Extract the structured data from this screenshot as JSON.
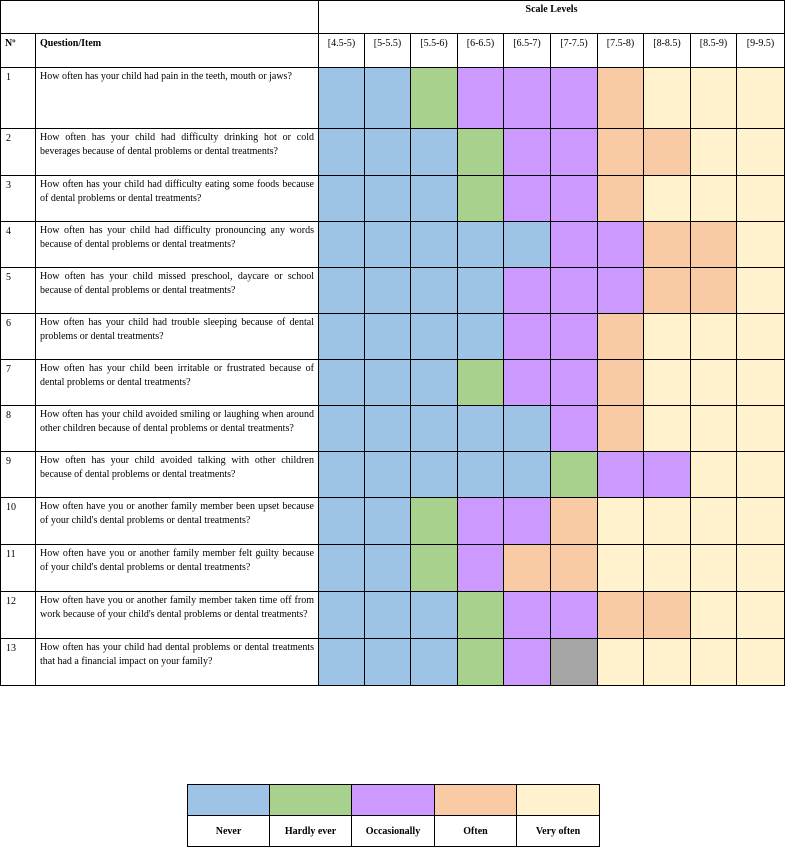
{
  "header": {
    "scale_title": "Scale Levels",
    "no_label": "Nº",
    "question_label": "Question/Item",
    "levels": [
      "[4.5-5)",
      "[5-5.5)",
      "[5.5-6)",
      "[6-6.5)",
      "[6.5-7)",
      "[7-7.5)",
      "[7.5-8)",
      "[8-8.5)",
      "[8.5-9)",
      "[9-9.5)"
    ]
  },
  "colors": {
    "never": "#9dc3e6",
    "hardly": "#a9d18e",
    "occ": "#cc99ff",
    "often": "#f8cba5",
    "very": "#fff2cc",
    "na": "#a5a5a5"
  },
  "rows": [
    {
      "n": "1",
      "q": "How often has your child had pain in the teeth, mouth or jaws?",
      "levels": [
        "never",
        "never",
        "hardly",
        "occ",
        "occ",
        "occ",
        "often",
        "very",
        "very",
        "very"
      ]
    },
    {
      "n": "2",
      "q": "How often has your child had difficulty drinking hot or cold beverages because of dental problems or dental treatments?",
      "levels": [
        "never",
        "never",
        "never",
        "hardly",
        "occ",
        "occ",
        "often",
        "often",
        "very",
        "very"
      ]
    },
    {
      "n": "3",
      "q": "How often has your child had difficulty eating some foods because of dental problems or dental treatments?",
      "levels": [
        "never",
        "never",
        "never",
        "hardly",
        "occ",
        "occ",
        "often",
        "very",
        "very",
        "very"
      ]
    },
    {
      "n": "4",
      "q": "How often has your child had difficulty pronouncing any words because of dental problems or dental treatments?",
      "levels": [
        "never",
        "never",
        "never",
        "never",
        "never",
        "occ",
        "occ",
        "often",
        "often",
        "very"
      ]
    },
    {
      "n": "5",
      "q": "How often has your child missed preschool, daycare or school because of dental problems or dental treatments?",
      "levels": [
        "never",
        "never",
        "never",
        "never",
        "occ",
        "occ",
        "occ",
        "often",
        "often",
        "very"
      ]
    },
    {
      "n": "6",
      "q": "How often has your child had trouble sleeping because of dental problems or dental treatments?",
      "levels": [
        "never",
        "never",
        "never",
        "never",
        "occ",
        "occ",
        "often",
        "very",
        "very",
        "very"
      ]
    },
    {
      "n": "7",
      "q": "How often has your child been irritable or frustrated because of dental problems or dental treatments?",
      "levels": [
        "never",
        "never",
        "never",
        "hardly",
        "occ",
        "occ",
        "often",
        "very",
        "very",
        "very"
      ]
    },
    {
      "n": "8",
      "q": "How often has your child avoided smiling or laughing when around other children because of dental problems or dental treatments?",
      "levels": [
        "never",
        "never",
        "never",
        "never",
        "never",
        "occ",
        "often",
        "very",
        "very",
        "very"
      ]
    },
    {
      "n": "9",
      "q": "How often has your child avoided talking with other children because of dental problems or dental treatments?",
      "levels": [
        "never",
        "never",
        "never",
        "never",
        "never",
        "hardly",
        "occ",
        "occ",
        "very",
        "very"
      ]
    },
    {
      "n": "10",
      "q": "How often have you or another family member been upset because of your child's dental problems or dental treatments?",
      "levels": [
        "never",
        "never",
        "hardly",
        "occ",
        "occ",
        "often",
        "very",
        "very",
        "very",
        "very"
      ]
    },
    {
      "n": "11",
      "q": "How often have you or another family member felt guilty because of your child's dental problems or dental treatments?",
      "levels": [
        "never",
        "never",
        "hardly",
        "occ",
        "often",
        "often",
        "very",
        "very",
        "very",
        "very"
      ]
    },
    {
      "n": "12",
      "q": "How often have you or another family member taken time off from work because of your child's dental problems or dental treatments?",
      "levels": [
        "never",
        "never",
        "never",
        "hardly",
        "occ",
        "occ",
        "often",
        "often",
        "very",
        "very"
      ]
    },
    {
      "n": "13",
      "q": "How often has your child had dental problems or dental treatments that had a financial impact on your family?",
      "levels": [
        "never",
        "never",
        "never",
        "hardly",
        "occ",
        "na",
        "very",
        "very",
        "very",
        "very"
      ]
    }
  ],
  "legend": [
    {
      "key": "never",
      "label": "Never"
    },
    {
      "key": "hardly",
      "label": "Hardly ever"
    },
    {
      "key": "occ",
      "label": "Occasionally"
    },
    {
      "key": "often",
      "label": "Often"
    },
    {
      "key": "very",
      "label": "Very often"
    }
  ]
}
